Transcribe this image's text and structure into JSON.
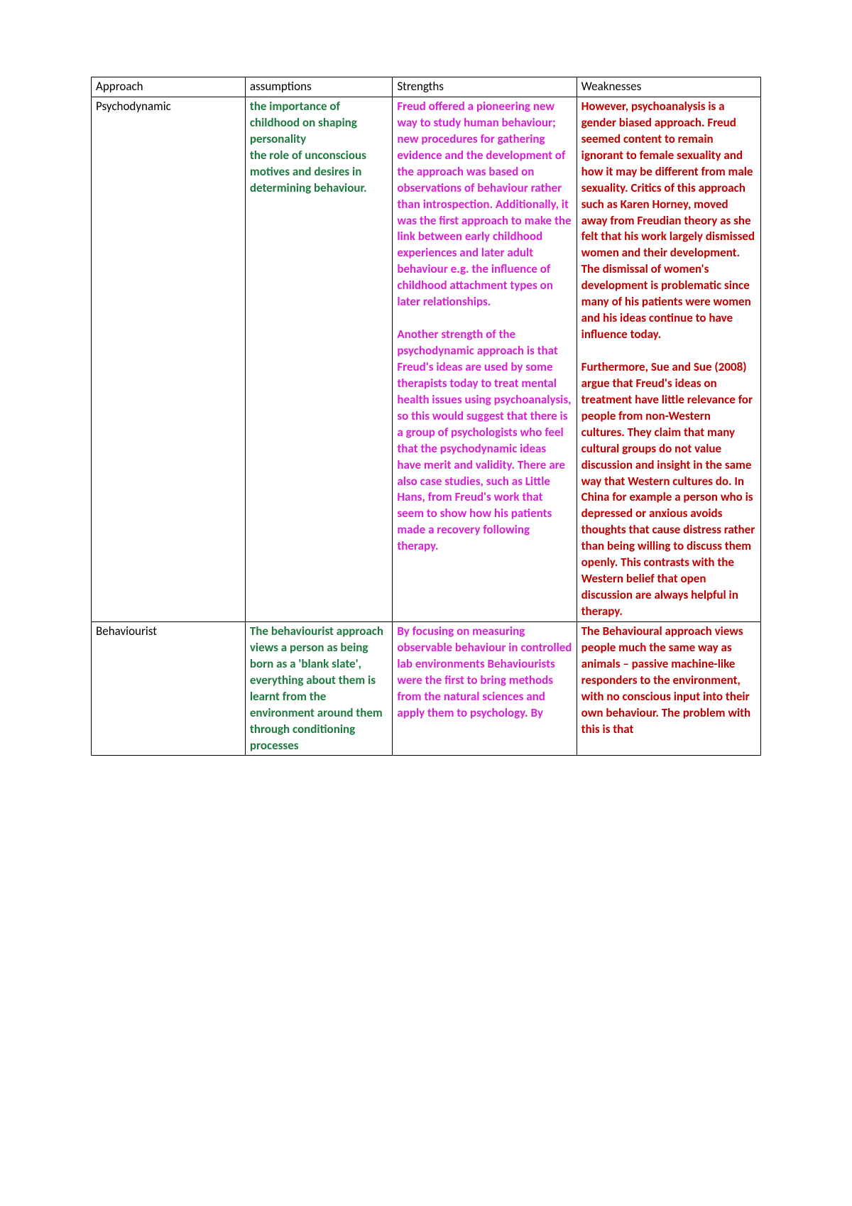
{
  "table": {
    "headers": {
      "approach": "Approach",
      "assumptions": "assumptions",
      "strengths": "Strengths",
      "weaknesses": "Weaknesses"
    },
    "header_color": "#000000",
    "border_color": "#000000",
    "background_color": "#ffffff",
    "rows": [
      {
        "approach": "Psychodynamic",
        "approach_color": "#000000",
        "assumptions_color": "#1e7a3f",
        "strengths_color": "#d81fd6",
        "weaknesses_color": "#c00000",
        "assumptions": "the importance of childhood on shaping personality\nthe role of unconscious motives and desires in determining behaviour.",
        "strengths_p1": "Freud offered a pioneering new way to study human behaviour; new procedures for gathering evidence and the development of the approach was based on observations of behaviour rather than introspection. Additionally, it was the first approach to make the link between early childhood experiences and later adult behaviour e.g. the influence of childhood attachment types on later relationships.",
        "strengths_p2": "Another strength of the psychodynamic approach is that Freud's ideas are used by some therapists today to treat mental health issues using psychoanalysis, so this would suggest that there is a group of psychologists who feel that the psychodynamic ideas have merit and validity. There are also case studies, such as Little Hans, from Freud's work that seem to show how his patients made a recovery following therapy.",
        "weaknesses_p1": "However, psychoanalysis is a gender biased approach. Freud seemed content to remain ignorant to female sexuality and how it may be different from male sexuality.  Critics of this approach such as Karen Horney, moved away from Freudian theory as she felt that his work largely dismissed women and their development.  The dismissal of women's development is problematic since many of his patients were women and his ideas continue to have influence today.",
        "weaknesses_p2": "Furthermore, Sue and Sue (2008) argue that Freud's ideas on treatment have little relevance for people from non-Western cultures.  They claim that many cultural groups do not value discussion and insight in the same way that Western cultures do.  In China for example a person who is depressed or anxious avoids thoughts that cause distress rather than being willing to discuss them openly.  This contrasts with the Western belief that open discussion are always helpful in therapy."
      },
      {
        "approach": "Behaviourist",
        "approach_color": "#000000",
        "assumptions_color": "#1e7a3f",
        "strengths_color": "#d81fd6",
        "weaknesses_color": "#c00000",
        "assumptions": "The behaviourist approach views a person as being born as a 'blank slate', everything about them is learnt from the environment around them through conditioning processes",
        "strengths_p1": "By focusing on measuring observable behaviour in controlled lab environments Behaviourists were the first to bring methods from the natural sciences and apply them to psychology. By",
        "weaknesses_p1": "The Behavioural approach views people much the same way as animals – passive machine-like responders to the environment, with no conscious input into their own behaviour. The problem with this is that"
      }
    ]
  }
}
